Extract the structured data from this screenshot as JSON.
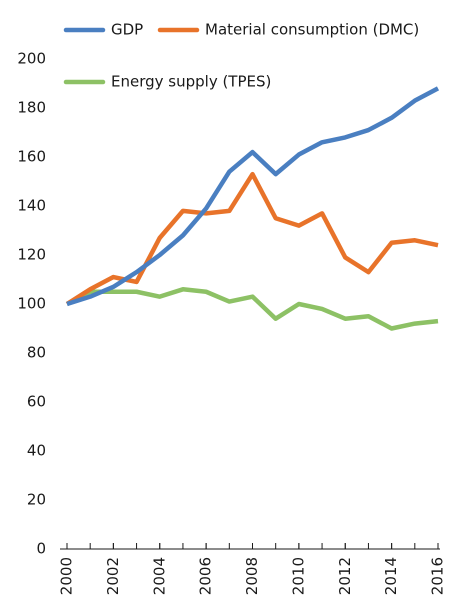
{
  "chart_data": {
    "type": "line",
    "x": [
      2000,
      2001,
      2002,
      2003,
      2004,
      2005,
      2006,
      2007,
      2008,
      2009,
      2010,
      2011,
      2012,
      2013,
      2014,
      2015,
      2016
    ],
    "series": [
      {
        "name": "GDP",
        "color": "#4a7fc1",
        "values": [
          100,
          103,
          107,
          113,
          120,
          128,
          139,
          154,
          162,
          153,
          161,
          166,
          168,
          171,
          176,
          183,
          188
        ]
      },
      {
        "name": "Material consumption (DMC)",
        "color": "#e8732a",
        "values": [
          100,
          106,
          111,
          109,
          127,
          138,
          137,
          138,
          153,
          135,
          132,
          137,
          119,
          113,
          125,
          126,
          124
        ]
      },
      {
        "name": "Energy supply (TPES)",
        "color": "#8dc165",
        "values": [
          100,
          105,
          105,
          105,
          103,
          106,
          105,
          101,
          103,
          94,
          100,
          98,
          94,
          95,
          90,
          92,
          93
        ]
      }
    ],
    "xlim": [
      2000,
      2016
    ],
    "xticks": [
      2000,
      2002,
      2004,
      2006,
      2008,
      2010,
      2012,
      2014,
      2016
    ],
    "ylim": [
      0,
      200
    ],
    "yticks": [
      0,
      20,
      40,
      60,
      80,
      100,
      120,
      140,
      160,
      180,
      200
    ],
    "grid": false
  }
}
